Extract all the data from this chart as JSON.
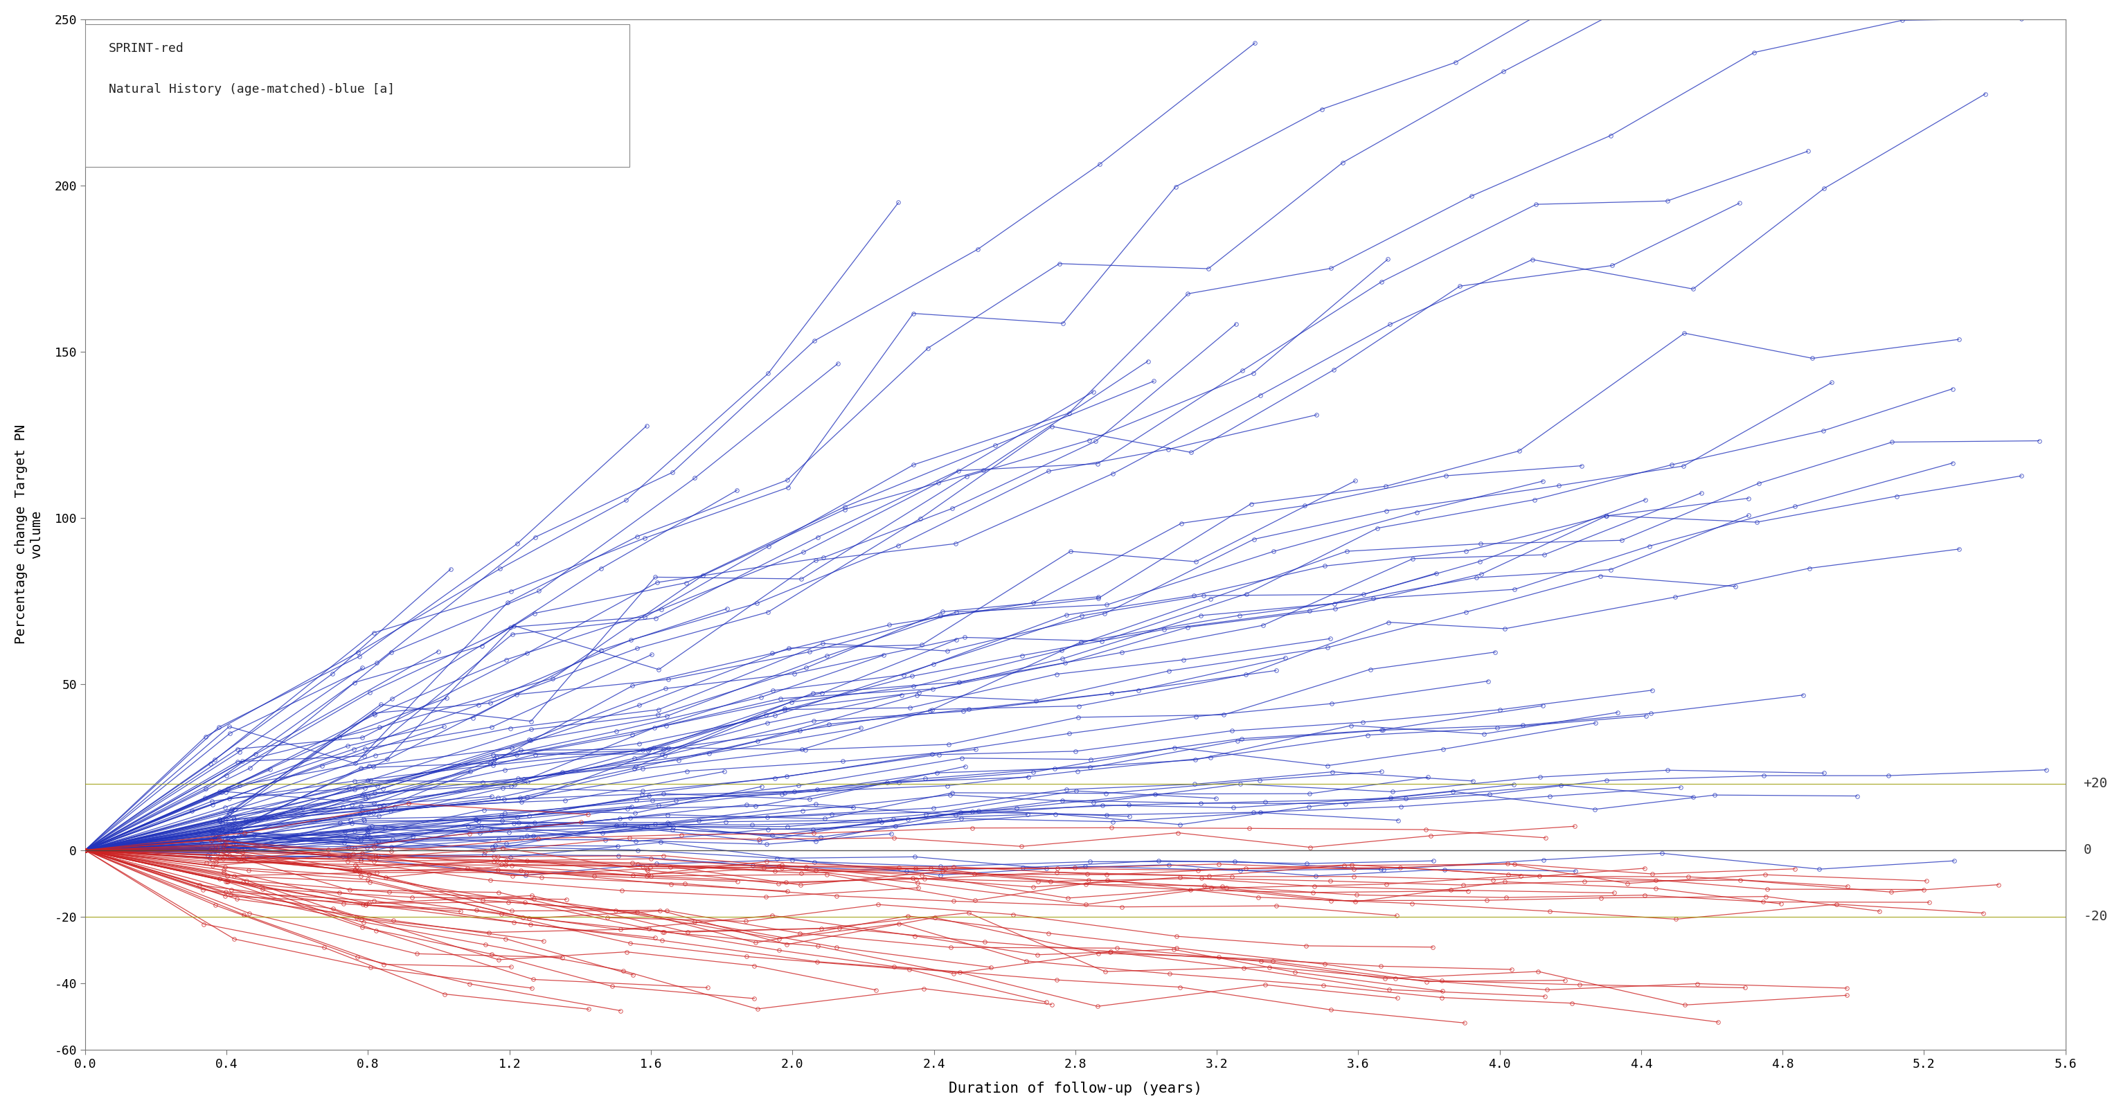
{
  "xlabel": "Duration of follow-up (years)",
  "ylabel": "Percentage change Target PN\nvolume",
  "xlim": [
    0.0,
    5.6
  ],
  "ylim": [
    -60,
    250
  ],
  "xticks": [
    0.0,
    0.4,
    0.8,
    1.2,
    1.6,
    2.0,
    2.4,
    2.8,
    3.2,
    3.6,
    4.0,
    4.4,
    4.8,
    5.2,
    5.6
  ],
  "yticks": [
    -60,
    -40,
    -20,
    0,
    50,
    100,
    150,
    200,
    250
  ],
  "ytick_labels": [
    "-60",
    "-40",
    "-20",
    "0",
    "50",
    "100",
    "150",
    "200",
    "250"
  ],
  "sprint_color": "#CC2222",
  "nh_color": "#2233BB",
  "legend_text1": "SPRINT-red",
  "legend_text2": "Natural History (age-matched)-blue [a]",
  "background_color": "#FFFFFF",
  "marker_size": 4.0,
  "line_width": 0.9,
  "alpha": 0.8,
  "seed": 42,
  "n_sprint": 48,
  "n_nh": 92,
  "assessment_interval": 0.4
}
